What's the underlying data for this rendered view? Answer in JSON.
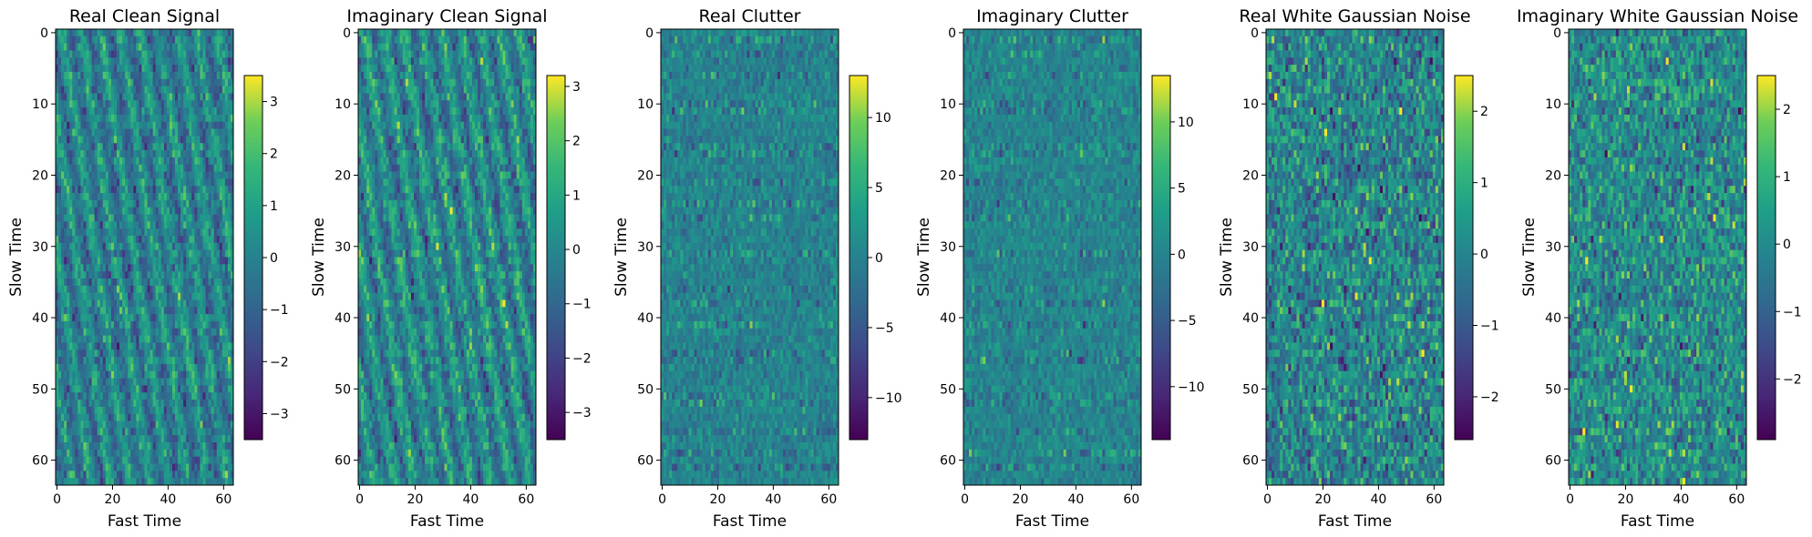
{
  "chart_data": [
    {
      "type": "heatmap",
      "title": "Real Clean Signal",
      "xlabel": "Fast Time",
      "ylabel": "Slow Time",
      "grid_size": [
        64,
        64
      ],
      "x_ticks": [
        0,
        20,
        40,
        60
      ],
      "y_ticks": [
        0,
        10,
        20,
        30,
        40,
        50,
        60
      ],
      "colormap": "viridis",
      "colorbar": {
        "min": -3.5,
        "max": 3.5,
        "ticks": [
          3,
          2,
          1,
          0,
          -1,
          -2,
          -3
        ]
      },
      "pattern": "diagonal"
    },
    {
      "type": "heatmap",
      "title": "Imaginary Clean Signal",
      "xlabel": "Fast Time",
      "ylabel": "Slow Time",
      "grid_size": [
        64,
        64
      ],
      "x_ticks": [
        0,
        20,
        40,
        60
      ],
      "y_ticks": [
        0,
        10,
        20,
        30,
        40,
        50,
        60
      ],
      "colormap": "viridis",
      "colorbar": {
        "min": -3.5,
        "max": 3.2,
        "ticks": [
          3,
          2,
          1,
          0,
          -1,
          -2,
          -3
        ]
      },
      "pattern": "diagonal"
    },
    {
      "type": "heatmap",
      "title": "Real Clutter",
      "xlabel": "Fast Time",
      "ylabel": "Slow Time",
      "grid_size": [
        64,
        64
      ],
      "x_ticks": [
        0,
        20,
        40,
        60
      ],
      "y_ticks": [
        0,
        10,
        20,
        30,
        40,
        50,
        60
      ],
      "colormap": "viridis",
      "colorbar": {
        "min": -13,
        "max": 13,
        "ticks": [
          10,
          5,
          0,
          -5,
          -10
        ]
      },
      "pattern": "clutter"
    },
    {
      "type": "heatmap",
      "title": "Imaginary Clutter",
      "xlabel": "Fast Time",
      "ylabel": "Slow Time",
      "grid_size": [
        64,
        64
      ],
      "x_ticks": [
        0,
        20,
        40,
        60
      ],
      "y_ticks": [
        0,
        10,
        20,
        30,
        40,
        50,
        60
      ],
      "colormap": "viridis",
      "colorbar": {
        "min": -14,
        "max": 13.5,
        "ticks": [
          10,
          5,
          0,
          -5,
          -10
        ]
      },
      "pattern": "clutter"
    },
    {
      "type": "heatmap",
      "title": "Real White Gaussian Noise",
      "xlabel": "Fast Time",
      "ylabel": "Slow Time",
      "grid_size": [
        64,
        64
      ],
      "x_ticks": [
        0,
        20,
        40,
        60
      ],
      "y_ticks": [
        0,
        10,
        20,
        30,
        40,
        50,
        60
      ],
      "colormap": "viridis",
      "colorbar": {
        "min": -2.6,
        "max": 2.5,
        "ticks": [
          2,
          1,
          0,
          -1,
          -2
        ]
      },
      "pattern": "noise"
    },
    {
      "type": "heatmap",
      "title": "Imaginary White Gaussian Noise",
      "xlabel": "Fast Time",
      "ylabel": "Slow Time",
      "grid_size": [
        64,
        64
      ],
      "x_ticks": [
        0,
        20,
        40,
        60
      ],
      "y_ticks": [
        0,
        10,
        20,
        30,
        40,
        50,
        60
      ],
      "colormap": "viridis",
      "colorbar": {
        "min": -2.9,
        "max": 2.5,
        "ticks": [
          2,
          1,
          0,
          -1,
          -2
        ]
      },
      "pattern": "noise"
    }
  ]
}
